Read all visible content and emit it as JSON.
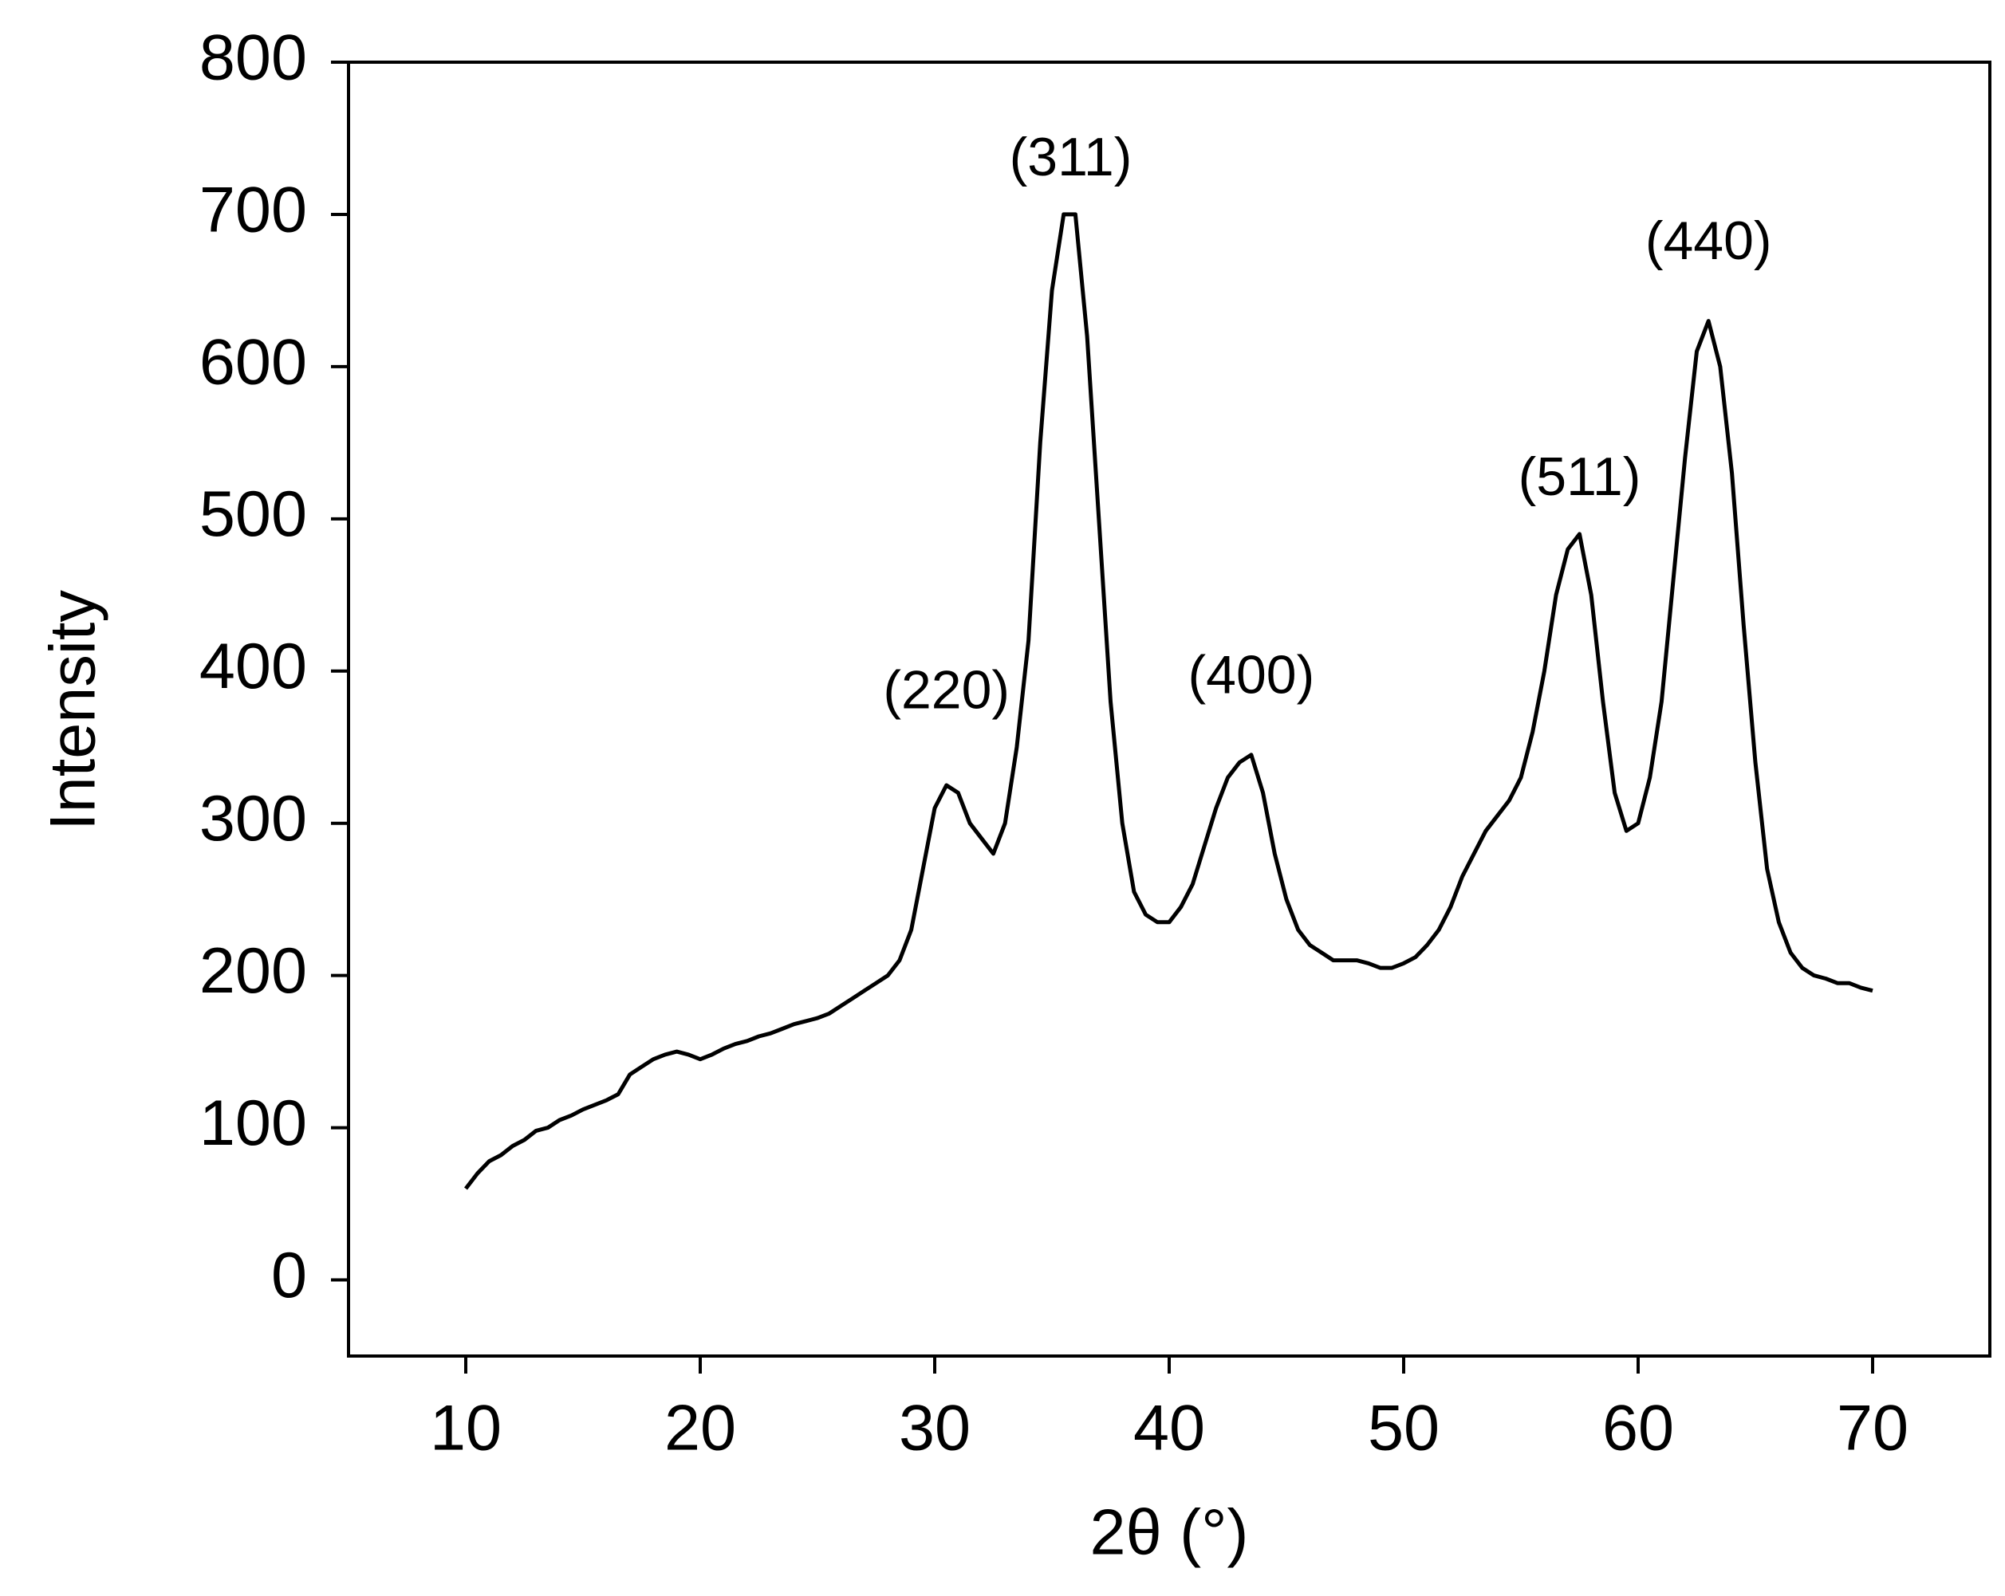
{
  "chart_data": {
    "type": "line",
    "xlabel": "2θ (°)",
    "ylabel": "Intensity",
    "x": [
      10,
      10.5,
      11,
      11.5,
      12,
      12.5,
      13,
      13.5,
      14,
      14.5,
      15,
      15.5,
      16,
      16.5,
      17,
      17.5,
      18,
      18.5,
      19,
      19.5,
      20,
      20.5,
      21,
      21.5,
      22,
      22.5,
      23,
      23.5,
      24,
      24.5,
      25,
      25.5,
      26,
      26.5,
      27,
      27.5,
      28,
      28.5,
      29,
      29.5,
      30,
      30.5,
      31,
      31.5,
      32,
      32.5,
      33,
      33.5,
      34,
      34.5,
      35,
      35.5,
      36,
      36.5,
      37,
      37.5,
      38,
      38.5,
      39,
      39.5,
      40,
      40.5,
      41,
      41.5,
      42,
      42.5,
      43,
      43.5,
      44,
      44.5,
      45,
      45.5,
      46,
      46.5,
      47,
      47.5,
      48,
      48.5,
      49,
      49.5,
      50,
      50.5,
      51,
      51.5,
      52,
      52.5,
      53,
      53.5,
      54,
      54.5,
      55,
      55.5,
      56,
      56.5,
      57,
      57.5,
      58,
      58.5,
      59,
      59.5,
      60,
      60.5,
      61,
      61.5,
      62,
      62.5,
      63,
      63.5,
      64,
      64.5,
      65,
      65.5,
      66,
      66.5,
      67,
      67.5,
      68,
      68.5,
      69,
      69.5,
      70
    ],
    "values": [
      60,
      70,
      78,
      82,
      88,
      92,
      98,
      100,
      105,
      108,
      112,
      115,
      118,
      122,
      135,
      140,
      145,
      148,
      150,
      148,
      145,
      148,
      152,
      155,
      157,
      160,
      162,
      165,
      168,
      170,
      172,
      175,
      180,
      185,
      190,
      195,
      200,
      210,
      230,
      270,
      310,
      325,
      320,
      300,
      290,
      280,
      300,
      350,
      420,
      550,
      650,
      700,
      700,
      620,
      500,
      380,
      300,
      255,
      240,
      235,
      235,
      245,
      260,
      285,
      310,
      330,
      340,
      345,
      320,
      280,
      250,
      230,
      220,
      215,
      210,
      210,
      210,
      208,
      205,
      205,
      208,
      212,
      220,
      230,
      245,
      265,
      280,
      295,
      305,
      315,
      330,
      360,
      400,
      450,
      480,
      490,
      450,
      380,
      320,
      295,
      300,
      330,
      380,
      460,
      540,
      610,
      630,
      600,
      530,
      430,
      340,
      270,
      235,
      215,
      205,
      200,
      198,
      195,
      195,
      192,
      190
    ],
    "color": "#000000",
    "xlim": [
      5,
      75
    ],
    "xticks": [
      10,
      20,
      30,
      40,
      50,
      60,
      70
    ],
    "ylim": [
      -50,
      800
    ],
    "yticks": [
      0,
      100,
      200,
      300,
      400,
      500,
      600,
      700,
      800
    ],
    "annotations": [
      {
        "text": "(220)",
        "x": 30.5,
        "y": 385
      },
      {
        "text": "(311)",
        "x": 35.8,
        "y": 735
      },
      {
        "text": "(400)",
        "x": 43.5,
        "y": 395
      },
      {
        "text": "(511)",
        "x": 57.5,
        "y": 525
      },
      {
        "text": "(440)",
        "x": 63,
        "y": 680
      }
    ]
  }
}
